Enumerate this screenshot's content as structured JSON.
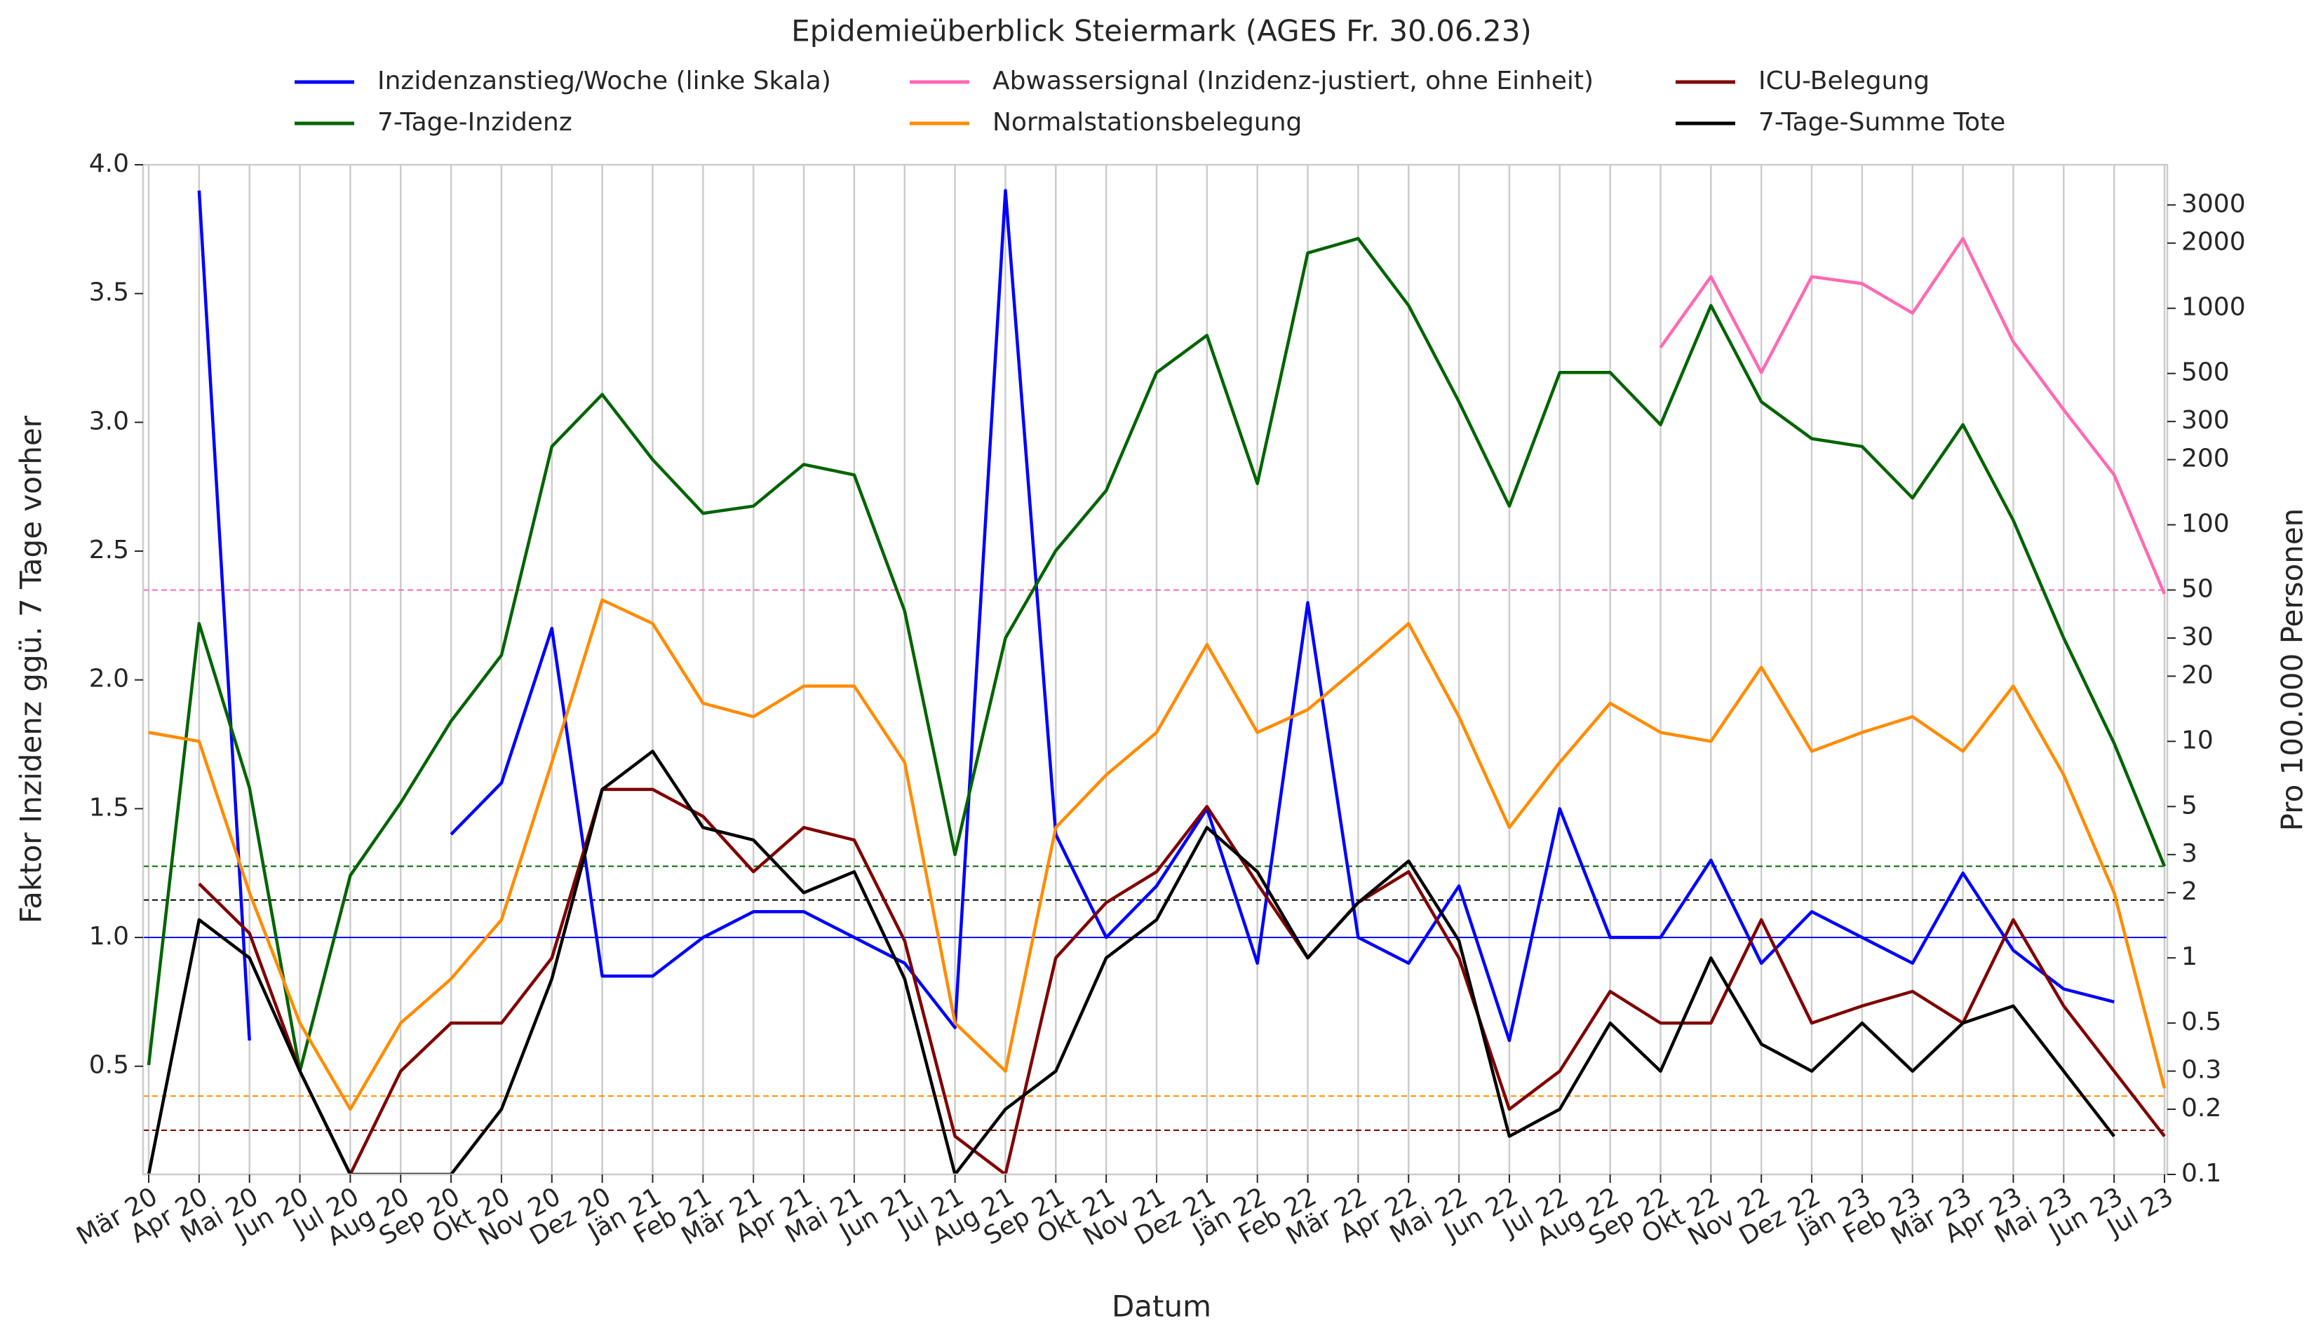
{
  "chart_data": {
    "type": "line",
    "title": "Epidemieüberblick Steiermark (AGES Fr. 30.06.23)",
    "xlabel": "Datum",
    "ylabel": "Faktor Inzidenz ggü. 7 Tage vorher",
    "y2label": "Pro 100.000 Personen",
    "categories": [
      "Mär 20",
      "Apr 20",
      "Mai 20",
      "Jun 20",
      "Jul 20",
      "Aug 20",
      "Sep 20",
      "Okt 20",
      "Nov 20",
      "Dez 20",
      "Jän 21",
      "Feb 21",
      "Mär 21",
      "Apr 21",
      "Mai 21",
      "Jun 21",
      "Jul 21",
      "Aug 21",
      "Sep 21",
      "Okt 21",
      "Nov 21",
      "Dez 21",
      "Jän 22",
      "Feb 22",
      "Mär 22",
      "Apr 22",
      "Mai 22",
      "Jun 22",
      "Jul 22",
      "Aug 22",
      "Sep 22",
      "Okt 22",
      "Nov 22",
      "Dez 22",
      "Jän 23",
      "Feb 23",
      "Mär 23",
      "Apr 23",
      "Mai 23",
      "Jun 23",
      "Jul 23"
    ],
    "ylim": [
      0.08,
      4.0
    ],
    "yticks": [
      {
        "value": 0.5,
        "label": "0.5"
      },
      {
        "value": 1.0,
        "label": "1.0"
      },
      {
        "value": 1.5,
        "label": "1.5"
      },
      {
        "value": 2.0,
        "label": "2.0"
      },
      {
        "value": 2.5,
        "label": "2.5"
      },
      {
        "value": 3.0,
        "label": "3.0"
      },
      {
        "value": 3.5,
        "label": "3.5"
      },
      {
        "value": 4.0,
        "label": "4.0"
      }
    ],
    "y2lim": [
      0.1,
      4600
    ],
    "y2scale": "log",
    "y2ticks": [
      0.1,
      0.2,
      0.3,
      0.5,
      1,
      2,
      3,
      5,
      10,
      20,
      30,
      50,
      100,
      200,
      300,
      500,
      1000,
      2000,
      3000
    ],
    "grid": "x",
    "legend": "top",
    "series": [
      {
        "name": "Inzidenzanstieg/Woche (linke Skala)",
        "color": "#0000ff",
        "axis": "y",
        "values": [
          null,
          3.9,
          0.6,
          null,
          null,
          null,
          1.4,
          1.6,
          2.2,
          0.85,
          0.85,
          1.0,
          1.1,
          1.1,
          1.0,
          0.9,
          0.65,
          3.9,
          1.4,
          1.0,
          1.2,
          1.5,
          0.9,
          2.3,
          1.0,
          0.9,
          1.2,
          0.6,
          1.5,
          1.0,
          1.0,
          1.3,
          0.9,
          1.1,
          1.0,
          0.9,
          1.25,
          0.95,
          0.8,
          0.75,
          null
        ]
      },
      {
        "name": "7-Tage-Inzidenz",
        "color": "#006400",
        "axis": "y2",
        "values": [
          0.32,
          35,
          6.1,
          0.3,
          2.4,
          5.2,
          12.4,
          25,
          230,
          400,
          200,
          113,
          122,
          190,
          170,
          40,
          3,
          30,
          76,
          144,
          505,
          750,
          155,
          1800,
          2100,
          1030,
          370,
          122,
          505,
          505,
          290,
          1030,
          370,
          250,
          230,
          133,
          290,
          105,
          30,
          9.8,
          2.65
        ]
      },
      {
        "name": "Abwassersignal (Inzidenz-justiert, ohne Einheit)",
        "color": "#ff69b4",
        "axis": "y2",
        "values": [
          null,
          null,
          null,
          null,
          null,
          null,
          null,
          null,
          null,
          null,
          null,
          null,
          null,
          null,
          null,
          null,
          null,
          null,
          null,
          null,
          null,
          null,
          null,
          null,
          null,
          null,
          null,
          null,
          null,
          null,
          660,
          1400,
          505,
          1400,
          1300,
          950,
          2100,
          700,
          340,
          170,
          48
        ]
      },
      {
        "name": "Normalstationsbelegung",
        "color": "#ff8c00",
        "axis": "y2",
        "values": [
          11,
          10,
          2,
          0.5,
          0.2,
          0.5,
          0.8,
          1.5,
          8,
          45,
          35,
          15,
          13,
          18,
          18,
          8,
          0.5,
          0.3,
          4,
          7,
          11,
          28,
          11,
          14,
          22,
          35,
          13,
          4,
          8,
          15,
          11,
          10,
          22,
          9,
          11,
          13,
          9,
          18,
          7,
          2,
          0.25
        ]
      },
      {
        "name": "ICU-Belegung",
        "color": "#800000",
        "axis": "y2",
        "values": [
          null,
          2.2,
          1.3,
          0.3,
          0.1,
          0.3,
          0.5,
          0.5,
          1.0,
          6,
          6,
          4.5,
          2.5,
          4,
          3.5,
          1.2,
          0.15,
          0.1,
          1,
          1.8,
          2.5,
          5,
          2.2,
          1,
          1.8,
          2.5,
          1.0,
          0.2,
          0.3,
          0.7,
          0.5,
          0.5,
          1.5,
          0.5,
          0.6,
          0.7,
          0.5,
          1.5,
          0.6,
          0.3,
          0.15
        ]
      },
      {
        "name": "7-Tage-Summe Tote",
        "color": "#000000",
        "axis": "y2",
        "values": [
          0.1,
          1.5,
          1.0,
          0.3,
          0.1,
          0.1,
          0.1,
          0.2,
          0.8,
          6,
          9,
          4,
          3.5,
          2,
          2.5,
          0.8,
          0.1,
          0.2,
          0.3,
          1,
          1.5,
          4,
          2.5,
          1,
          1.8,
          2.8,
          1.2,
          0.15,
          0.2,
          0.5,
          0.3,
          1.0,
          0.4,
          0.3,
          0.5,
          0.3,
          0.5,
          0.6,
          0.3,
          0.15,
          null
        ]
      }
    ],
    "reference_lines": [
      {
        "value": 1.0,
        "axis": "y",
        "color": "#0000ff",
        "style": "solid"
      },
      {
        "value": 50,
        "axis": "y2",
        "color": "#ff69b4",
        "style": "dashed"
      },
      {
        "value": 2.65,
        "axis": "y2",
        "color": "#006400",
        "style": "dashed"
      },
      {
        "value": 1.85,
        "axis": "y2",
        "color": "#000000",
        "style": "dashed"
      },
      {
        "value": 0.23,
        "axis": "y2",
        "color": "#ff8c00",
        "style": "dashed"
      },
      {
        "value": 0.16,
        "axis": "y2",
        "color": "#800000",
        "style": "dashed"
      }
    ]
  }
}
